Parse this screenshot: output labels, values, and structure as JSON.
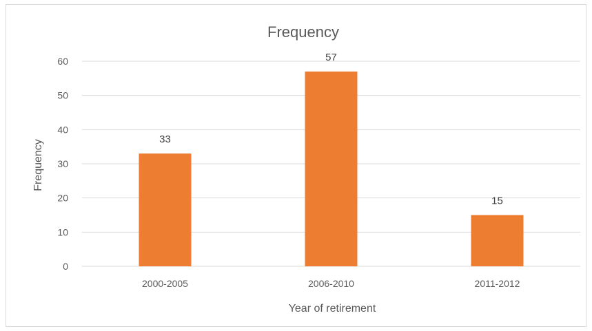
{
  "chart_data": {
    "type": "bar",
    "title": "Frequency",
    "xlabel": "Year of retirement",
    "ylabel": "Frequency",
    "categories": [
      "2000-2005",
      "2006-2010",
      "2011-2012"
    ],
    "series": [
      {
        "values": [
          33,
          57,
          15
        ],
        "color": "#ed7d31"
      }
    ],
    "ylim": [
      0,
      60
    ],
    "yticks": [
      "0",
      "10",
      "20",
      "30",
      "40",
      "50",
      "60"
    ],
    "data_labels": [
      "33",
      "57",
      "15"
    ],
    "grid": true,
    "legend": "none"
  }
}
